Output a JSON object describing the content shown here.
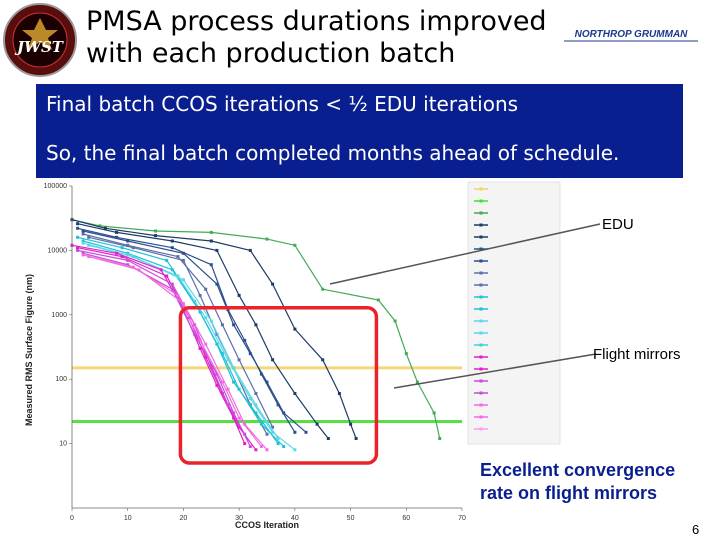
{
  "header": {
    "title_line1": "PMSA process durations improved",
    "title_line2": "with each production batch",
    "logo_icon": "jwst-mission-logo",
    "logo_text": "JWST",
    "brand_text": "NORTHROP GRUMMAN"
  },
  "banner": {
    "line1": "Final batch CCOS iterations < ½ EDU iterations",
    "line2": "So, the final batch completed months ahead of schedule.",
    "color": "#0a1f8f"
  },
  "callouts": {
    "edu": "EDU",
    "flight": "Flight mirrors",
    "convergence_line1": "Excellent convergence",
    "convergence_line2": "rate on flight mirrors"
  },
  "page_number": "6",
  "chart_data": {
    "type": "line",
    "xlabel": "CCOS Iteration",
    "ylabel": "Measured RMS Surface Figure (nm)",
    "xlim": [
      0,
      70
    ],
    "ylim": [
      1,
      100000
    ],
    "yscale": "log",
    "x_ticks": [
      "0",
      "10",
      "20",
      "30",
      "40",
      "50",
      "60",
      "70"
    ],
    "y_ticks": [
      "100000",
      "10000",
      "1000",
      "100",
      "10"
    ],
    "legend_position": "right",
    "reference_lines": [
      {
        "y": 150,
        "color": "#f3d36b"
      },
      {
        "y": 22,
        "color": "#44dd33"
      }
    ],
    "highlight_box": {
      "x": [
        20,
        55
      ],
      "y": [
        5,
        1200
      ],
      "color": "#e8242a"
    },
    "series": [
      {
        "color": "#44aa55",
        "values": [
          [
            0,
            30000
          ],
          [
            5,
            24000
          ],
          [
            15,
            20000
          ],
          [
            25,
            19000
          ],
          [
            35,
            15000
          ],
          [
            40,
            12000
          ],
          [
            45,
            2500
          ],
          [
            55,
            1700
          ],
          [
            58,
            800
          ],
          [
            60,
            250
          ],
          [
            62,
            90
          ],
          [
            65,
            30
          ],
          [
            66,
            12
          ]
        ]
      },
      {
        "color": "#1d3b66",
        "values": [
          [
            0,
            30000
          ],
          [
            6,
            22000
          ],
          [
            15,
            17000
          ],
          [
            25,
            14000
          ],
          [
            32,
            10000
          ],
          [
            36,
            3000
          ],
          [
            40,
            600
          ],
          [
            45,
            200
          ],
          [
            48,
            60
          ],
          [
            50,
            20
          ],
          [
            51,
            12
          ]
        ]
      },
      {
        "color": "#1d3b66",
        "values": [
          [
            1,
            26000
          ],
          [
            8,
            19000
          ],
          [
            18,
            14000
          ],
          [
            26,
            10000
          ],
          [
            30,
            2000
          ],
          [
            33,
            700
          ],
          [
            36,
            200
          ],
          [
            40,
            60
          ],
          [
            44,
            20
          ],
          [
            46,
            12
          ]
        ]
      },
      {
        "color": "#2b4e8c",
        "values": [
          [
            1,
            22000
          ],
          [
            8,
            16000
          ],
          [
            18,
            11000
          ],
          [
            25,
            6000
          ],
          [
            28,
            1200
          ],
          [
            31,
            400
          ],
          [
            34,
            120
          ],
          [
            37,
            40
          ],
          [
            40,
            15
          ]
        ]
      },
      {
        "color": "#2b4e8c",
        "values": [
          [
            2,
            20000
          ],
          [
            10,
            14000
          ],
          [
            20,
            9000
          ],
          [
            26,
            3000
          ],
          [
            29,
            700
          ],
          [
            32,
            250
          ],
          [
            35,
            90
          ],
          [
            38,
            30
          ],
          [
            42,
            15
          ]
        ]
      },
      {
        "color": "#5c6fa8",
        "values": [
          [
            2,
            18000
          ],
          [
            10,
            12000
          ],
          [
            19,
            8000
          ],
          [
            24,
            2500
          ],
          [
            27,
            700
          ],
          [
            30,
            200
          ],
          [
            33,
            60
          ],
          [
            36,
            18
          ]
        ]
      },
      {
        "color": "#5c6fa8",
        "values": [
          [
            3,
            16000
          ],
          [
            11,
            11000
          ],
          [
            20,
            7000
          ],
          [
            23,
            2000
          ],
          [
            26,
            500
          ],
          [
            29,
            150
          ],
          [
            32,
            40
          ],
          [
            35,
            14
          ]
        ]
      },
      {
        "color": "#1dc2d6",
        "values": [
          [
            1,
            16000
          ],
          [
            9,
            11000
          ],
          [
            17,
            7000
          ],
          [
            22,
            1600
          ],
          [
            26,
            350
          ],
          [
            29,
            90
          ],
          [
            33,
            30
          ],
          [
            37,
            10
          ]
        ]
      },
      {
        "color": "#1dc2d6",
        "values": [
          [
            2,
            14000
          ],
          [
            10,
            9000
          ],
          [
            18,
            5000
          ],
          [
            23,
            1100
          ],
          [
            27,
            250
          ],
          [
            30,
            70
          ],
          [
            34,
            20
          ],
          [
            38,
            9
          ]
        ]
      },
      {
        "color": "#5bd8e8",
        "values": [
          [
            2,
            13000
          ],
          [
            10,
            8500
          ],
          [
            19,
            4000
          ],
          [
            24,
            900
          ],
          [
            28,
            200
          ],
          [
            32,
            50
          ],
          [
            36,
            15
          ],
          [
            40,
            8
          ]
        ]
      },
      {
        "color": "#5bd8e8",
        "values": [
          [
            3,
            12000
          ],
          [
            11,
            8000
          ],
          [
            20,
            3500
          ],
          [
            25,
            800
          ],
          [
            29,
            150
          ],
          [
            33,
            40
          ],
          [
            37,
            12
          ]
        ]
      },
      {
        "color": "#e020c8",
        "values": [
          [
            0,
            12000
          ],
          [
            8,
            9000
          ],
          [
            16,
            5000
          ],
          [
            20,
            1200
          ],
          [
            23,
            300
          ],
          [
            26,
            80
          ],
          [
            29,
            25
          ],
          [
            31,
            10
          ]
        ]
      },
      {
        "color": "#e020c8",
        "values": [
          [
            1,
            11000
          ],
          [
            9,
            8000
          ],
          [
            17,
            4000
          ],
          [
            21,
            900
          ],
          [
            24,
            220
          ],
          [
            27,
            60
          ],
          [
            30,
            18
          ],
          [
            33,
            8
          ]
        ]
      },
      {
        "color": "#c84ad8",
        "values": [
          [
            1,
            10000
          ],
          [
            10,
            7000
          ],
          [
            18,
            3000
          ],
          [
            22,
            700
          ],
          [
            25,
            160
          ],
          [
            28,
            40
          ],
          [
            31,
            14
          ]
        ]
      },
      {
        "color": "#c84ad8",
        "values": [
          [
            2,
            9000
          ],
          [
            10,
            6000
          ],
          [
            18,
            2500
          ],
          [
            22,
            500
          ],
          [
            26,
            120
          ],
          [
            29,
            30
          ],
          [
            32,
            9
          ]
        ]
      },
      {
        "color": "#f06be0",
        "values": [
          [
            2,
            8500
          ],
          [
            11,
            5500
          ],
          [
            19,
            2000
          ],
          [
            23,
            400
          ],
          [
            27,
            90
          ],
          [
            30,
            25
          ],
          [
            34,
            9
          ]
        ]
      },
      {
        "color": "#f06be0",
        "values": [
          [
            3,
            8000
          ],
          [
            12,
            5000
          ],
          [
            20,
            1500
          ],
          [
            24,
            350
          ],
          [
            28,
            70
          ],
          [
            31,
            20
          ],
          [
            35,
            8
          ]
        ]
      }
    ],
    "legend_entries": [
      {
        "color": "#f3d36b",
        "label": ""
      },
      {
        "color": "#44dd33",
        "label": ""
      },
      {
        "color": "#44aa55",
        "label": ""
      },
      {
        "color": "#1d3b66",
        "label": ""
      },
      {
        "color": "#1d3b66",
        "label": ""
      },
      {
        "color": "#2b4e8c",
        "label": ""
      },
      {
        "color": "#2b4e8c",
        "label": ""
      },
      {
        "color": "#5c6fa8",
        "label": ""
      },
      {
        "color": "#5c6fa8",
        "label": ""
      },
      {
        "color": "#1dc2d6",
        "label": ""
      },
      {
        "color": "#1dc2d6",
        "label": ""
      },
      {
        "color": "#5bd8e8",
        "label": ""
      },
      {
        "color": "#5bd8e8",
        "label": ""
      },
      {
        "color": "#3ad0e0",
        "label": ""
      },
      {
        "color": "#e020c8",
        "label": ""
      },
      {
        "color": "#e020c8",
        "label": ""
      },
      {
        "color": "#c84ad8",
        "label": ""
      },
      {
        "color": "#c84ad8",
        "label": ""
      },
      {
        "color": "#f06be0",
        "label": ""
      },
      {
        "color": "#f06be0",
        "label": ""
      },
      {
        "color": "#f8a0ec",
        "label": ""
      }
    ],
    "grid": false
  }
}
